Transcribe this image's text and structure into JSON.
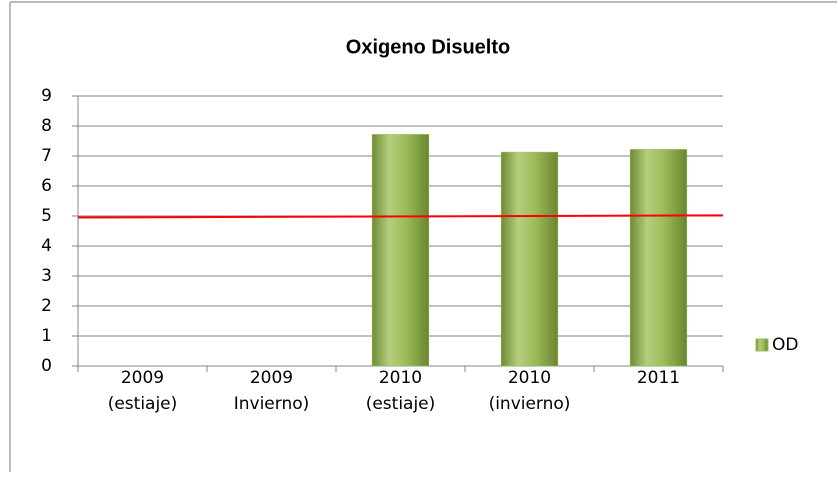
{
  "chart_data": {
    "type": "bar",
    "title": "Oxigeno Disuelto",
    "categories": [
      [
        "2009",
        "(estiaje)"
      ],
      [
        "2009",
        "Invierno)"
      ],
      [
        "2010",
        "(estiaje)"
      ],
      [
        "2010",
        "(invierno)"
      ],
      [
        "2011"
      ]
    ],
    "series": [
      {
        "name": "OD",
        "color": "#9bbb59",
        "values": [
          null,
          null,
          7.72,
          7.13,
          7.22
        ]
      }
    ],
    "ylim": [
      0,
      9
    ],
    "yticks": [
      0,
      1,
      2,
      3,
      4,
      5,
      6,
      7,
      8,
      9
    ],
    "grid": true,
    "reference_line": {
      "color": "#ff0000",
      "values": [
        4.95,
        5.02
      ]
    },
    "legend": "right"
  }
}
